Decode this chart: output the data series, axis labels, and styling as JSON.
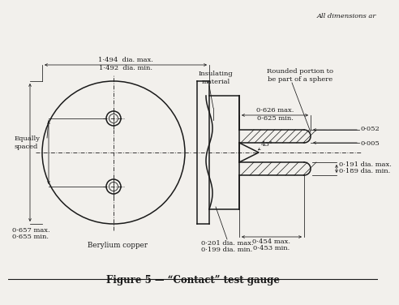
{
  "title": "Figure 5 — “Contact” test gauge",
  "top_note": "All dimensions ar",
  "bg_color": "#f2f0ec",
  "line_color": "#1a1a1a",
  "annotations": {
    "equally_spaced": "Equally\nspaced",
    "dia_max1": "1·494  dia. max.",
    "dia_min1": "1·492  dia. min.",
    "insulating": "Insulating\nmaterial",
    "rounded": "Rounded portion to\nbe part of a sphere",
    "berylium": "Berylium copper",
    "dim_0657_a": "0·657 max.",
    "dim_0657_b": "0·655 min.",
    "dim_0201_a": "0·201 dia. max.",
    "dim_0201_b": "0·199 dia. min.",
    "dim_0454_a": "0·454 max.",
    "dim_0454_b": "0·453 min.",
    "dim_0191_a": "0·191 dia. max.",
    "dim_0191_b": "0·189 dia. min.",
    "dim_0626_a": "0·626 max.",
    "dim_0625_b": "0·625 min.",
    "dim_0052": "0·052",
    "dim_0005": "0·005",
    "angle_45": "45°"
  }
}
